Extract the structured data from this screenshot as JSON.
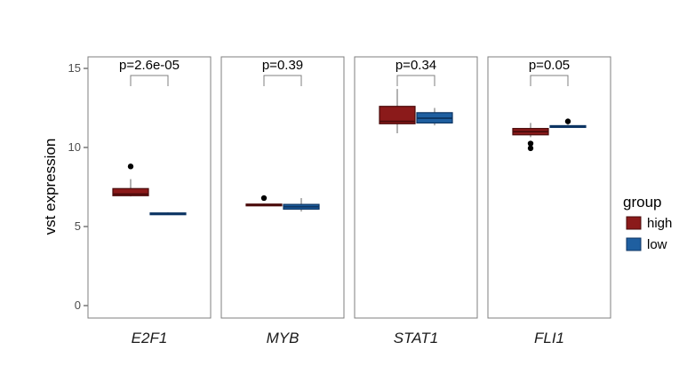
{
  "chart_data": {
    "type": "boxplot",
    "ylabel": "vst expression",
    "ylim": [
      0,
      15.8
    ],
    "yticks": [
      0,
      5,
      10,
      15
    ],
    "grid": false,
    "legend": {
      "title": "group",
      "position": "right",
      "entries": [
        {
          "label": "high",
          "color": "#8B1A1A"
        },
        {
          "label": "low",
          "color": "#1F5FA0"
        }
      ]
    },
    "panels": [
      {
        "label": "E2F1",
        "pvalue": "p=2.6e-05",
        "boxes": [
          {
            "group": "high",
            "whisker_low": 6.9,
            "q1": 6.95,
            "median": 7.05,
            "q3": 7.4,
            "whisker_high": 8.0,
            "outliers": [
              8.8
            ]
          },
          {
            "group": "low",
            "whisker_low": 5.75,
            "q1": 5.78,
            "median": 5.82,
            "q3": 5.86,
            "whisker_high": 5.9,
            "outliers": []
          }
        ]
      },
      {
        "label": "MYB",
        "pvalue": "p=0.39",
        "boxes": [
          {
            "group": "high",
            "whisker_low": 6.3,
            "q1": 6.33,
            "median": 6.38,
            "q3": 6.42,
            "whisker_high": 6.45,
            "outliers": [
              6.8
            ]
          },
          {
            "group": "low",
            "whisker_low": 5.95,
            "q1": 6.1,
            "median": 6.25,
            "q3": 6.4,
            "whisker_high": 6.8,
            "outliers": []
          }
        ]
      },
      {
        "label": "STAT1",
        "pvalue": "p=0.34",
        "boxes": [
          {
            "group": "high",
            "whisker_low": 10.9,
            "q1": 11.5,
            "median": 11.65,
            "q3": 12.6,
            "whisker_high": 13.7,
            "outliers": []
          },
          {
            "group": "low",
            "whisker_low": 11.4,
            "q1": 11.55,
            "median": 11.85,
            "q3": 12.2,
            "whisker_high": 12.5,
            "outliers": []
          }
        ]
      },
      {
        "label": "FLI1",
        "pvalue": "p=0.05",
        "boxes": [
          {
            "group": "high",
            "whisker_low": 10.65,
            "q1": 10.8,
            "median": 11.0,
            "q3": 11.2,
            "whisker_high": 11.55,
            "outliers": [
              10.25,
              9.95
            ]
          },
          {
            "group": "low",
            "whisker_low": 11.25,
            "q1": 11.28,
            "median": 11.32,
            "q3": 11.38,
            "whisker_high": 11.45,
            "outliers": [
              11.65
            ]
          }
        ]
      }
    ]
  }
}
